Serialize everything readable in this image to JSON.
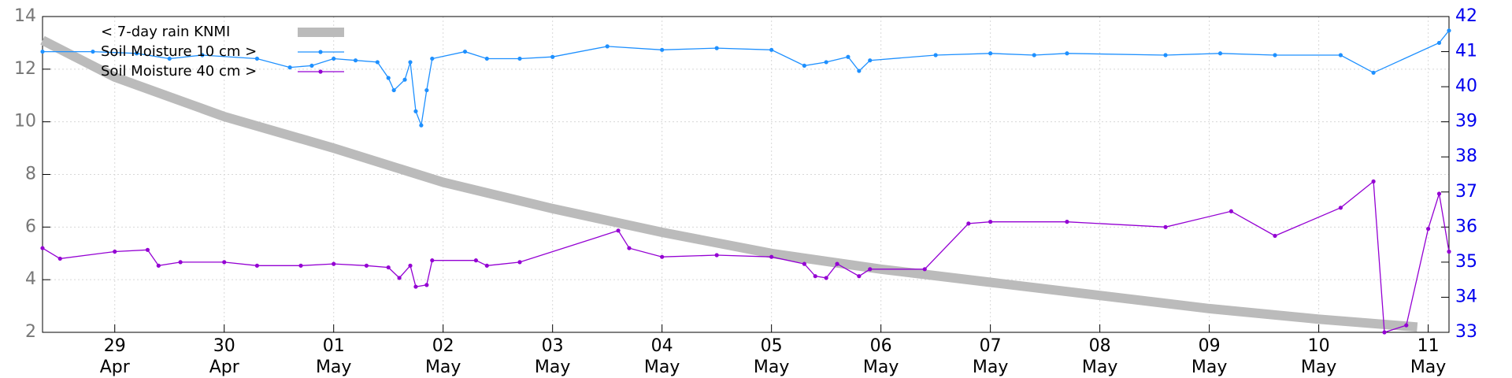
{
  "chart_data": {
    "type": "line",
    "xlim": [
      28.34,
      41.19
    ],
    "xticks": [
      {
        "value": 29,
        "label": "29 Apr"
      },
      {
        "value": 30,
        "label": "30 Apr"
      },
      {
        "value": 31,
        "label": "01 May"
      },
      {
        "value": 32,
        "label": "02 May"
      },
      {
        "value": 33,
        "label": "03 May"
      },
      {
        "value": 34,
        "label": "04 May"
      },
      {
        "value": 35,
        "label": "05 May"
      },
      {
        "value": 36,
        "label": "06 May"
      },
      {
        "value": 37,
        "label": "07 May"
      },
      {
        "value": 38,
        "label": "08 May"
      },
      {
        "value": 39,
        "label": "09 May"
      },
      {
        "value": 40,
        "label": "10 May"
      },
      {
        "value": 41,
        "label": "11 May"
      }
    ],
    "ylim": [
      2,
      14
    ],
    "yticks": [
      2,
      4,
      6,
      8,
      10,
      12,
      14
    ],
    "y2lim": [
      33,
      42
    ],
    "y2ticks": [
      33,
      34,
      35,
      36,
      37,
      38,
      39,
      40,
      41,
      42
    ],
    "grid": true,
    "series": [
      {
        "name": "< 7-day rain KNMI",
        "color": "#bbbbbb",
        "axis": "y",
        "x": [
          28.34,
          29,
          30,
          31,
          32,
          33,
          34,
          35,
          36,
          37,
          38,
          39,
          40,
          40.9
        ],
        "values": [
          13.1,
          11.7,
          10.2,
          9.0,
          7.7,
          6.7,
          5.8,
          5.0,
          4.4,
          3.9,
          3.4,
          2.9,
          2.5,
          2.2
        ]
      },
      {
        "name": "Soil Moisture 10 cm >",
        "color": "#1e90ff",
        "axis": "y2",
        "x": [
          28.34,
          28.8,
          29.2,
          29.5,
          29.8,
          30.3,
          30.6,
          30.8,
          31.0,
          31.2,
          31.4,
          31.5,
          31.55,
          31.65,
          31.7,
          31.75,
          31.8,
          31.85,
          31.9,
          32.2,
          32.4,
          32.7,
          33.0,
          33.5,
          34.0,
          34.5,
          35.0,
          35.3,
          35.5,
          35.7,
          35.8,
          35.9,
          36.5,
          37.0,
          37.4,
          37.7,
          38.6,
          39.1,
          39.6,
          40.2,
          40.5,
          41.1,
          41.19
        ],
        "values": [
          41.0,
          41.0,
          40.95,
          40.8,
          40.9,
          40.8,
          40.55,
          40.6,
          40.8,
          40.75,
          40.7,
          40.25,
          39.9,
          40.2,
          40.7,
          39.3,
          38.9,
          39.9,
          40.8,
          41.0,
          40.8,
          40.8,
          40.85,
          41.15,
          41.05,
          41.1,
          41.05,
          40.6,
          40.7,
          40.85,
          40.45,
          40.75,
          40.9,
          40.95,
          40.9,
          40.95,
          40.9,
          40.95,
          40.9,
          40.9,
          40.4,
          41.25,
          41.6
        ]
      },
      {
        "name": "Soil Moisture 40 cm >",
        "color": "#9400d3",
        "axis": "y2",
        "x": [
          28.34,
          28.5,
          29.0,
          29.3,
          29.4,
          29.6,
          30.0,
          30.3,
          30.7,
          31.0,
          31.3,
          31.5,
          31.6,
          31.7,
          31.75,
          31.85,
          31.9,
          32.3,
          32.4,
          32.7,
          33.6,
          33.7,
          34.0,
          34.5,
          35.0,
          35.3,
          35.4,
          35.5,
          35.6,
          35.8,
          35.9,
          36.4,
          36.8,
          37.0,
          37.7,
          38.6,
          39.2,
          39.6,
          40.2,
          40.5,
          40.6,
          40.8,
          41.0,
          41.1,
          41.19
        ],
        "values": [
          35.4,
          35.1,
          35.3,
          35.35,
          34.9,
          35.0,
          35.0,
          34.9,
          34.9,
          34.95,
          34.9,
          34.85,
          34.55,
          34.9,
          34.3,
          34.35,
          35.05,
          35.05,
          34.9,
          35.0,
          35.9,
          35.4,
          35.15,
          35.2,
          35.15,
          34.95,
          34.6,
          34.55,
          34.95,
          34.6,
          34.8,
          34.8,
          36.1,
          36.15,
          36.15,
          36.0,
          36.45,
          35.75,
          36.55,
          37.3,
          33.0,
          33.2,
          35.95,
          36.95,
          35.3
        ]
      }
    ]
  }
}
